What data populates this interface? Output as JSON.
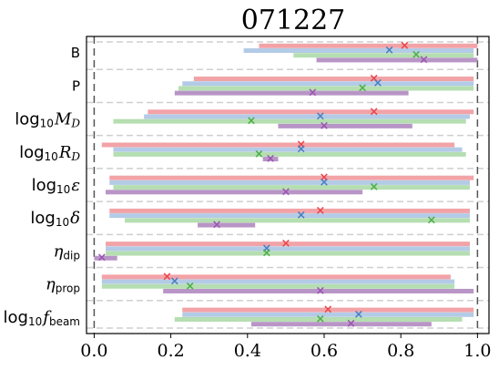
{
  "chart_data": {
    "type": "range-bar",
    "title": "071227",
    "xlabel": "",
    "ylabel": "",
    "xlim": [
      -0.02,
      1.03
    ],
    "xticks": [
      "0.0",
      "0.2",
      "0.4",
      "0.6",
      "0.8",
      "1.0"
    ],
    "xtick_values": [
      0.0,
      0.2,
      0.4,
      0.6,
      0.8,
      1.0
    ],
    "reference_lines": [
      0.0,
      1.0
    ],
    "grid": false,
    "colors": [
      "#e8474c",
      "#4a7fbf",
      "#4daf4a",
      "#9b55b0"
    ],
    "bar_colors": [
      "#f2a3a7",
      "#b3cbe6",
      "#b5deb1",
      "#b895c6"
    ],
    "parameters": [
      {
        "label": "B",
        "ranges": [
          [
            0.43,
            1.0
          ],
          [
            0.39,
            0.99
          ],
          [
            0.52,
            0.99
          ],
          [
            0.58,
            1.0
          ]
        ],
        "markers": [
          0.81,
          0.77,
          0.84,
          0.86
        ]
      },
      {
        "label": "P",
        "ranges": [
          [
            0.26,
            0.99
          ],
          [
            0.23,
            0.99
          ],
          [
            0.22,
            0.99
          ],
          [
            0.21,
            0.82
          ]
        ],
        "markers": [
          0.73,
          0.74,
          0.7,
          0.57
        ]
      },
      {
        "label": "log10 M_D",
        "ranges": [
          [
            0.14,
            0.99
          ],
          [
            0.13,
            0.98
          ],
          [
            0.05,
            0.97
          ],
          [
            0.48,
            0.83
          ]
        ],
        "markers": [
          0.73,
          0.59,
          0.41,
          0.6
        ]
      },
      {
        "label": "log10 R_D",
        "ranges": [
          [
            0.02,
            0.94
          ],
          [
            0.05,
            0.96
          ],
          [
            0.05,
            0.97
          ],
          [
            0.44,
            0.48
          ]
        ],
        "markers": [
          0.54,
          0.54,
          0.43,
          0.46
        ]
      },
      {
        "label": "log10 ε",
        "ranges": [
          [
            0.04,
            0.99
          ],
          [
            0.04,
            0.98
          ],
          [
            0.05,
            0.98
          ],
          [
            0.03,
            0.7
          ]
        ],
        "markers": [
          0.6,
          0.6,
          0.73,
          0.5
        ]
      },
      {
        "label": "log10 δ",
        "ranges": [
          [
            0.04,
            0.98
          ],
          [
            0.04,
            0.98
          ],
          [
            0.08,
            0.98
          ],
          [
            0.27,
            0.42
          ]
        ],
        "markers": [
          0.59,
          0.54,
          0.88,
          0.32
        ]
      },
      {
        "label": "η_dip",
        "ranges": [
          [
            0.03,
            0.98
          ],
          [
            0.03,
            0.98
          ],
          [
            0.03,
            0.98
          ],
          [
            0.0,
            0.06
          ]
        ],
        "markers": [
          0.5,
          0.45,
          0.45,
          0.02
        ]
      },
      {
        "label": "η_prop",
        "ranges": [
          [
            0.02,
            0.93
          ],
          [
            0.02,
            0.94
          ],
          [
            0.02,
            0.94
          ],
          [
            0.18,
            0.99
          ]
        ],
        "markers": [
          0.19,
          0.21,
          0.25,
          0.59
        ]
      },
      {
        "label": "log10 f_beam",
        "ranges": [
          [
            0.23,
            0.99
          ],
          [
            0.23,
            0.99
          ],
          [
            0.21,
            0.96
          ],
          [
            0.41,
            0.88
          ]
        ],
        "markers": [
          0.61,
          0.69,
          0.59,
          0.67
        ]
      }
    ]
  }
}
